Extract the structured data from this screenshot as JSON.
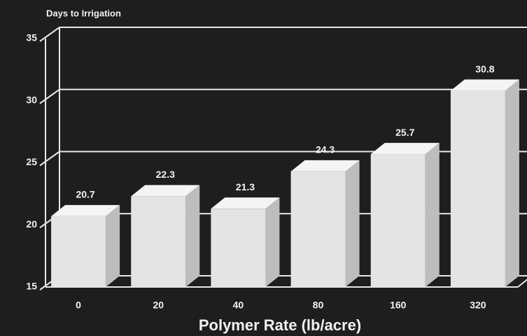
{
  "chart_data": {
    "type": "bar3d",
    "title": "Days to Irrigation",
    "x_label": "Polymer Rate (lb/acre)",
    "categories": [
      "0",
      "20",
      "40",
      "80",
      "160",
      "320"
    ],
    "values": [
      20.7,
      22.3,
      21.3,
      24.3,
      25.7,
      30.8
    ],
    "color": "#e4e4e4",
    "ylim": [
      15,
      35
    ],
    "yticks": [
      15,
      20,
      25,
      30,
      35
    ],
    "grid": true
  }
}
